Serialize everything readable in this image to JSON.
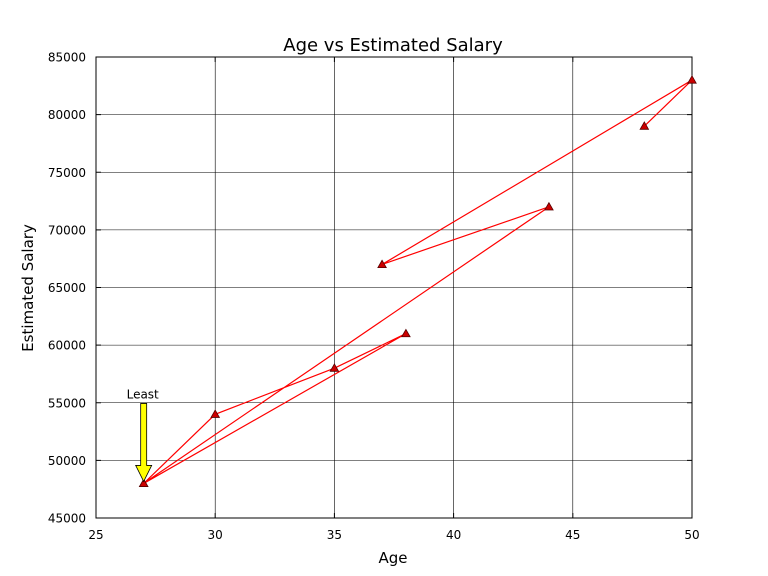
{
  "chart_data": {
    "type": "line",
    "title": "Age vs Estimated Salary",
    "xlabel": "Age",
    "ylabel": "Estimated Salary",
    "xlim": [
      25,
      50
    ],
    "ylim": [
      45000,
      85000
    ],
    "x_ticks": [
      25,
      30,
      35,
      40,
      45,
      50
    ],
    "y_ticks": [
      45000,
      50000,
      55000,
      60000,
      65000,
      70000,
      75000,
      80000,
      85000
    ],
    "grid": true,
    "marker": "triangle",
    "series": [
      {
        "color": "#ff0000",
        "x": [
          27,
          30,
          35,
          38,
          27,
          44,
          37,
          50,
          48
        ],
        "y": [
          48000,
          54000,
          58000,
          61000,
          48000,
          72000,
          67000,
          83000,
          79000
        ]
      }
    ],
    "annotations": [
      {
        "text": "Least",
        "x": 27,
        "y": 48000,
        "arrow_color": "#ffff00"
      }
    ]
  }
}
